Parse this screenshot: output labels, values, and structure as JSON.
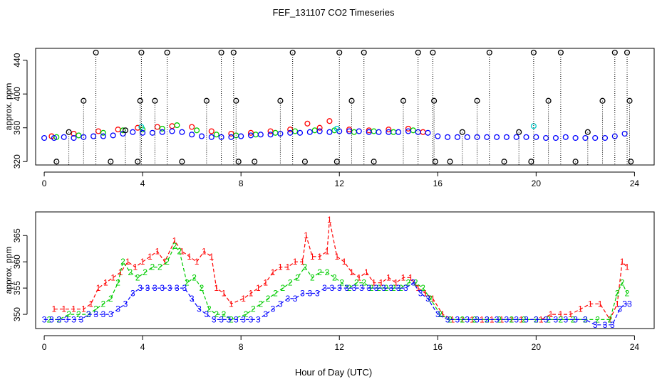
{
  "figure": {
    "title": "FEF_131107  CO2 Timeseries",
    "xlabel": "Hour of Day (UTC)"
  },
  "chart_data": [
    {
      "type": "scatter",
      "name": "top-panel",
      "title": "FEF_131107  CO2 Timeseries",
      "xlabel": "Hour of Day (UTC)",
      "ylabel": "approx. ppm",
      "xlim": [
        -0.35,
        24.8
      ],
      "ylim": [
        316,
        454
      ],
      "xticks": [
        0,
        4,
        8,
        12,
        16,
        20,
        24
      ],
      "yticks": [
        320,
        360,
        400,
        440
      ],
      "grid": false,
      "series": [
        {
          "name": "series-1",
          "color": "#ff0000",
          "marker": "o",
          "x": [
            0.3,
            1.2,
            2.2,
            3.0,
            3.8,
            4.6,
            5.2,
            6.0,
            6.8,
            7.6,
            8.4,
            9.2,
            10.0,
            10.7,
            11.2,
            11.6,
            12.4,
            13.2,
            14.0,
            14.8,
            15.4
          ],
          "y": [
            350,
            353,
            356,
            358,
            360,
            361,
            362,
            361,
            356,
            353,
            354,
            356,
            358,
            365,
            360,
            368,
            358,
            357,
            358,
            359,
            355
          ]
        },
        {
          "name": "series-2",
          "color": "#00cc00",
          "marker": "o",
          "x": [
            0.5,
            1.4,
            2.4,
            3.2,
            4.0,
            4.8,
            5.4,
            6.2,
            7.0,
            7.8,
            8.6,
            9.4,
            10.2,
            11.0,
            11.8,
            12.6,
            13.4,
            14.2,
            15.0
          ],
          "y": [
            349,
            351,
            354,
            357,
            358,
            359,
            363,
            357,
            352,
            351,
            352,
            354,
            356,
            357,
            357,
            355,
            356,
            355,
            357
          ]
        },
        {
          "name": "series-3",
          "color": "#0000ff",
          "marker": "o",
          "x": [
            0.0,
            0.4,
            0.8,
            1.2,
            1.6,
            2.0,
            2.4,
            2.8,
            3.2,
            3.6,
            4.0,
            4.4,
            4.8,
            5.2,
            5.6,
            6.0,
            6.4,
            6.8,
            7.2,
            7.6,
            8.0,
            8.4,
            8.8,
            9.2,
            9.6,
            10.0,
            10.4,
            10.8,
            11.2,
            11.6,
            12.0,
            12.4,
            12.8,
            13.2,
            13.6,
            14.0,
            14.4,
            14.8,
            15.2,
            15.6,
            16.0,
            16.4,
            16.8,
            17.2,
            17.6,
            18.0,
            18.4,
            18.8,
            19.2,
            19.6,
            20.0,
            20.4,
            20.8,
            21.2,
            21.6,
            22.0,
            22.4,
            22.8,
            23.2,
            23.6
          ],
          "y": [
            348,
            348,
            349,
            348,
            349,
            350,
            350,
            351,
            353,
            355,
            354,
            354,
            355,
            356,
            355,
            352,
            350,
            349,
            349,
            349,
            350,
            351,
            352,
            352,
            353,
            354,
            354,
            355,
            356,
            355,
            356,
            356,
            356,
            355,
            355,
            355,
            355,
            356,
            355,
            354,
            350,
            349,
            349,
            349,
            349,
            349,
            349,
            349,
            349,
            349,
            349,
            348,
            348,
            349,
            348,
            348,
            348,
            348,
            350,
            353
          ]
        },
        {
          "name": "series-4",
          "color": "#00cccc",
          "marker": "o",
          "x": [
            3.95,
            11.9,
            19.9
          ],
          "y": [
            361,
            359,
            362
          ]
        },
        {
          "name": "series-5",
          "color": "#000000",
          "marker": "o",
          "x": [
            0.5,
            1.0,
            1.6,
            2.1,
            2.7,
            3.3,
            3.8,
            3.9,
            3.95,
            4.5,
            5.0,
            5.6,
            6.6,
            7.2,
            7.7,
            7.8,
            7.9,
            8.55,
            9.6,
            10.1,
            10.6,
            11.9,
            12.0,
            12.5,
            13.0,
            13.4,
            14.6,
            15.2,
            15.8,
            15.85,
            15.9,
            16.5,
            17.0,
            17.6,
            18.1,
            18.7,
            19.3,
            19.8,
            19.9,
            20.5,
            21.0,
            21.6,
            22.1,
            22.7,
            23.2,
            23.7,
            23.8,
            23.85
          ],
          "y": [
            320,
            355,
            392,
            449,
            320,
            357,
            320,
            392,
            449,
            392,
            449,
            320,
            392,
            449,
            449,
            392,
            320,
            320,
            392,
            449,
            320,
            320,
            449,
            392,
            449,
            320,
            392,
            449,
            449,
            392,
            320,
            320,
            355,
            392,
            449,
            320,
            355,
            320,
            449,
            392,
            449,
            320,
            355,
            392,
            449,
            449,
            392,
            320
          ]
        }
      ]
    },
    {
      "type": "scatter",
      "name": "bottom-panel",
      "xlabel": "Hour of Day (UTC)",
      "ylabel": "approx. ppm",
      "xlim": [
        -0.35,
        24.8
      ],
      "ylim": [
        347.3,
        369.5
      ],
      "xticks": [
        0,
        4,
        8,
        12,
        16,
        20,
        24
      ],
      "yticks": [
        350,
        355,
        360,
        365
      ],
      "grid": false,
      "series": [
        {
          "name": "series-1",
          "label": "1",
          "color": "#ff0000",
          "marker": "1",
          "x": [
            0.4,
            0.8,
            1.2,
            1.6,
            1.9,
            2.2,
            2.5,
            2.8,
            3.1,
            3.4,
            3.7,
            4.0,
            4.3,
            4.6,
            4.9,
            5.3,
            5.6,
            5.9,
            6.2,
            6.5,
            6.8,
            7.0,
            7.3,
            7.6,
            8.1,
            8.4,
            8.7,
            9.0,
            9.3,
            9.6,
            9.9,
            10.2,
            10.5,
            10.65,
            10.9,
            11.2,
            11.5,
            11.6,
            11.9,
            12.2,
            12.5,
            12.8,
            13.1,
            13.4,
            13.7,
            14.0,
            14.3,
            14.6,
            14.9,
            15.2,
            15.5,
            15.8,
            16.2,
            16.6,
            17.0,
            17.4,
            17.8,
            18.2,
            18.6,
            19.0,
            19.4,
            20.2,
            20.6,
            21.0,
            21.4,
            21.8,
            22.2,
            22.6,
            23.0,
            23.3,
            23.5,
            23.7
          ],
          "y": [
            351,
            351,
            351,
            351,
            352,
            355,
            356,
            357,
            358,
            360,
            359,
            360,
            361,
            362,
            360,
            364,
            362,
            361,
            360,
            362,
            361,
            355,
            354,
            352,
            353,
            354,
            355,
            356,
            358,
            359,
            359,
            360,
            360,
            365,
            361,
            361,
            362,
            368,
            361,
            360,
            358,
            357,
            358,
            356,
            356,
            357,
            356,
            357,
            357,
            355,
            354,
            353,
            350,
            349,
            349,
            349,
            349,
            349,
            349,
            349,
            349,
            349,
            350,
            350,
            350,
            351,
            352,
            352,
            349,
            352,
            360,
            359
          ]
        },
        {
          "name": "series-2",
          "label": "2",
          "color": "#00cc00",
          "marker": "2",
          "x": [
            0.2,
            0.6,
            1.0,
            1.4,
            1.8,
            2.1,
            2.4,
            2.7,
            3.0,
            3.2,
            3.5,
            3.8,
            4.1,
            4.4,
            4.7,
            5.0,
            5.3,
            5.5,
            5.8,
            6.1,
            6.4,
            6.7,
            7.0,
            7.3,
            7.6,
            8.2,
            8.5,
            8.8,
            9.1,
            9.4,
            9.7,
            10.0,
            10.3,
            10.6,
            10.9,
            11.2,
            11.5,
            11.8,
            12.1,
            12.4,
            12.7,
            13.0,
            13.3,
            13.6,
            13.9,
            14.2,
            14.5,
            14.8,
            15.1,
            15.4,
            15.7,
            16.1,
            16.5,
            17.0,
            17.5,
            18.0,
            18.5,
            19.0,
            19.5,
            20.0,
            20.5,
            21.0,
            21.5,
            22.0,
            22.5,
            23.0,
            23.3,
            23.5,
            23.7
          ],
          "y": [
            349,
            349,
            350,
            350,
            350,
            351,
            352,
            353,
            356,
            360,
            358,
            357,
            358,
            359,
            359,
            360,
            363,
            362,
            356,
            357,
            355,
            351,
            350,
            350,
            349,
            350,
            351,
            352,
            353,
            354,
            355,
            356,
            357,
            359,
            357,
            358,
            358,
            357,
            356,
            355,
            356,
            356,
            355,
            355,
            355,
            355,
            355,
            356,
            356,
            355,
            353,
            350,
            349,
            349,
            349,
            349,
            349,
            349,
            349,
            349,
            349,
            349,
            349,
            349,
            349,
            349,
            354,
            356,
            354
          ]
        },
        {
          "name": "series-3",
          "label": "3",
          "color": "#0000ff",
          "marker": "3",
          "x": [
            0.0,
            0.3,
            0.6,
            0.9,
            1.2,
            1.5,
            1.8,
            2.1,
            2.4,
            2.7,
            3.0,
            3.3,
            3.6,
            3.9,
            4.2,
            4.5,
            4.8,
            5.1,
            5.4,
            5.7,
            6.0,
            6.3,
            6.6,
            6.9,
            7.2,
            7.5,
            7.8,
            8.1,
            8.4,
            8.7,
            9.0,
            9.3,
            9.6,
            9.9,
            10.2,
            10.5,
            10.8,
            11.1,
            11.4,
            11.7,
            12.0,
            12.3,
            12.6,
            12.9,
            13.2,
            13.5,
            13.8,
            14.1,
            14.4,
            14.7,
            15.0,
            15.3,
            15.6,
            16.0,
            16.4,
            16.8,
            17.2,
            17.6,
            18.0,
            18.4,
            18.8,
            19.2,
            19.6,
            20.0,
            20.4,
            20.8,
            21.2,
            21.6,
            22.0,
            22.4,
            22.8,
            23.1,
            23.4,
            23.6,
            23.8
          ],
          "y": [
            349,
            349,
            349,
            349,
            349,
            349,
            350,
            350,
            350,
            350,
            351,
            352,
            354,
            355,
            355,
            355,
            355,
            355,
            355,
            355,
            353,
            351,
            350,
            349,
            349,
            349,
            349,
            349,
            349,
            349,
            350,
            351,
            352,
            353,
            353,
            354,
            354,
            354,
            355,
            355,
            355,
            355,
            355,
            355,
            355,
            355,
            355,
            355,
            355,
            355,
            356,
            354,
            353,
            350,
            349,
            349,
            349,
            349,
            349,
            349,
            349,
            349,
            349,
            349,
            349,
            349,
            349,
            349,
            349,
            348,
            348,
            348,
            351,
            352,
            352
          ]
        }
      ]
    }
  ]
}
